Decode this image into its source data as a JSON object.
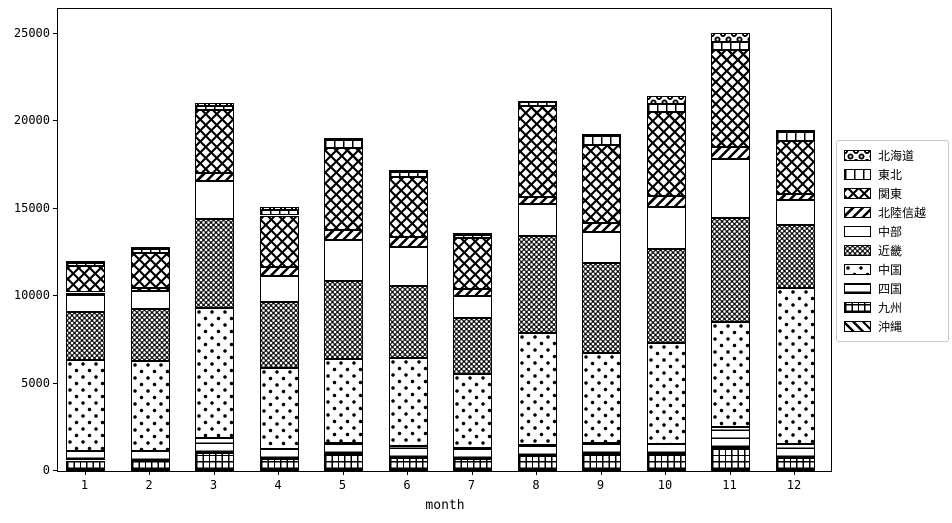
{
  "chart_data": {
    "type": "bar",
    "stacked": true,
    "title": "",
    "xlabel": "month",
    "ylabel": "",
    "ylim": [
      0,
      26400
    ],
    "yticks": [
      0,
      5000,
      10000,
      15000,
      20000,
      25000
    ],
    "categories": [
      "1",
      "2",
      "3",
      "4",
      "5",
      "6",
      "7",
      "8",
      "9",
      "10",
      "11",
      "12"
    ],
    "legend_position": "right-outside",
    "legend_order_top_to_bottom": [
      "北海道",
      "東北",
      "関東",
      "北陸信越",
      "中部",
      "近畿",
      "中国",
      "四国",
      "九州",
      "沖縄"
    ],
    "stack_order_bottom_to_top": [
      "沖縄",
      "九州",
      "四国",
      "中国",
      "近畿",
      "中部",
      "北陸信越",
      "関東",
      "東北",
      "北海道"
    ],
    "series": [
      {
        "name": "北海道",
        "hatch": "o",
        "values": [
          100,
          150,
          150,
          140,
          100,
          100,
          80,
          100,
          150,
          435,
          515,
          120
        ]
      },
      {
        "name": "東北",
        "hatch": "|",
        "values": [
          150,
          200,
          250,
          320,
          450,
          320,
          190,
          180,
          480,
          480,
          475,
          470
        ]
      },
      {
        "name": "関東",
        "hatch": "xx",
        "values": [
          1540,
          2010,
          3600,
          2960,
          4670,
          3430,
          2920,
          5245,
          4480,
          4765,
          5530,
          3055
        ]
      },
      {
        "name": "北陸信越",
        "hatch": "//",
        "values": [
          150,
          150,
          450,
          480,
          570,
          570,
          380,
          380,
          480,
          670,
          670,
          320
        ]
      },
      {
        "name": "中部",
        "hatch": "",
        "values": [
          990,
          1050,
          2150,
          1530,
          2380,
          2200,
          1240,
          1815,
          1810,
          2380,
          3390,
          1440
        ]
      },
      {
        "name": "近畿",
        "hatch": "**",
        "values": [
          2730,
          2950,
          5100,
          3720,
          4420,
          4100,
          3240,
          5530,
          5150,
          5340,
          5950,
          3630
        ]
      },
      {
        "name": "中国",
        "hatch": ".",
        "values": [
          5200,
          5150,
          7400,
          4670,
          4800,
          5050,
          4200,
          6400,
          5100,
          5810,
          6000,
          8900
        ]
      },
      {
        "name": "四国",
        "hatch": "-",
        "values": [
          530,
          550,
          900,
          570,
          670,
          670,
          660,
          650,
          670,
          540,
          1150,
          770
        ]
      },
      {
        "name": "九州",
        "hatch": "+",
        "values": [
          550,
          550,
          950,
          620,
          900,
          710,
          620,
          800,
          900,
          940,
          1280,
          710
        ]
      },
      {
        "name": "沖縄",
        "hatch": "\\",
        "values": [
          50,
          50,
          60,
          50,
          50,
          50,
          50,
          60,
          50,
          50,
          60,
          50
        ]
      }
    ]
  }
}
